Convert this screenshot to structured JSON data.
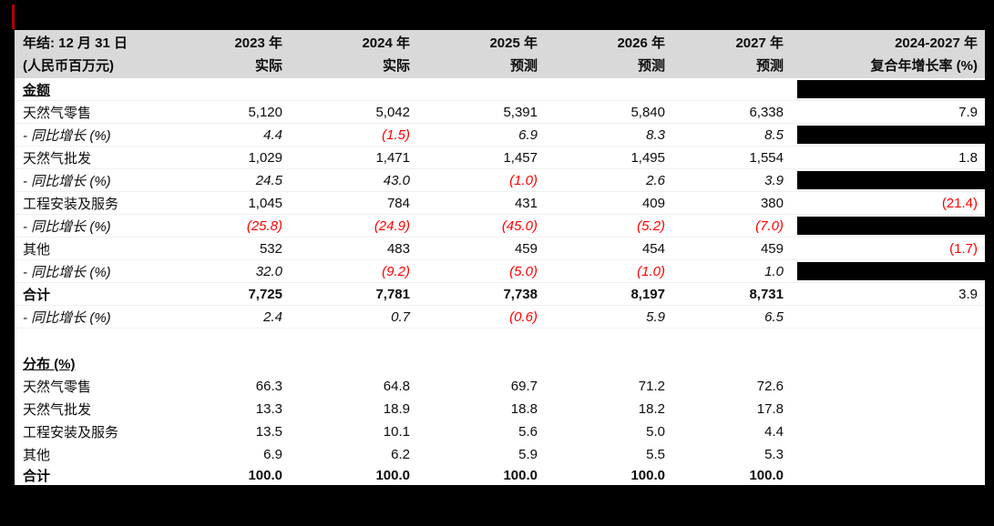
{
  "page": {
    "background_color": "#000000",
    "accent_red": "#b00000",
    "negative_color": "#ff0000",
    "header_bg": "#d9d9d9"
  },
  "header": {
    "label_line1": "年结: 12 月 31 日",
    "label_line2": "(人民币百万元)",
    "cols": [
      {
        "year": "2023 年",
        "type": "实际"
      },
      {
        "year": "2024 年",
        "type": "实际"
      },
      {
        "year": "2025 年",
        "type": "预测"
      },
      {
        "year": "2026 年",
        "type": "预测"
      },
      {
        "year": "2027 年",
        "type": "预测"
      },
      {
        "year": "2024-2027 年",
        "type": "复合年增长率 (%)"
      }
    ]
  },
  "rows": [
    {
      "label": "金额",
      "kind": "section",
      "redacted": true,
      "v": [
        "",
        "",
        "",
        "",
        "",
        ""
      ]
    },
    {
      "label": "天然气零售",
      "kind": "item",
      "redacted": false,
      "v": [
        "5,120",
        "5,042",
        "5,391",
        "5,840",
        "6,338",
        "7.9"
      ]
    },
    {
      "label": "- 同比增长 (%)",
      "kind": "growth",
      "redacted": true,
      "v": [
        "4.4",
        "(1.5)",
        "6.9",
        "8.3",
        "8.5",
        ""
      ]
    },
    {
      "label": "天然气批发",
      "kind": "item",
      "redacted": false,
      "v": [
        "1,029",
        "1,471",
        "1,457",
        "1,495",
        "1,554",
        "1.8"
      ]
    },
    {
      "label": "- 同比增长 (%)",
      "kind": "growth",
      "redacted": true,
      "v": [
        "24.5",
        "43.0",
        "(1.0)",
        "2.6",
        "3.9",
        ""
      ]
    },
    {
      "label": "工程安装及服务",
      "kind": "item",
      "redacted": false,
      "v": [
        "1,045",
        "784",
        "431",
        "409",
        "380",
        "(21.4)"
      ]
    },
    {
      "label": "- 同比增长 (%)",
      "kind": "growth",
      "redacted": true,
      "v": [
        "(25.8)",
        "(24.9)",
        "(45.0)",
        "(5.2)",
        "(7.0)",
        ""
      ]
    },
    {
      "label": "其他",
      "kind": "item",
      "redacted": false,
      "v": [
        "532",
        "483",
        "459",
        "454",
        "459",
        "(1.7)"
      ]
    },
    {
      "label": "- 同比增长 (%)",
      "kind": "growth",
      "redacted": true,
      "v": [
        "32.0",
        "(9.2)",
        "(5.0)",
        "(1.0)",
        "1.0",
        ""
      ]
    },
    {
      "label": "合计",
      "kind": "total",
      "redacted": false,
      "v": [
        "7,725",
        "7,781",
        "7,738",
        "8,197",
        "8,731",
        "3.9"
      ]
    },
    {
      "label": "- 同比增长 (%)",
      "kind": "growth",
      "redacted": false,
      "v": [
        "2.4",
        "0.7",
        "(0.6)",
        "5.9",
        "6.5",
        ""
      ]
    },
    {
      "label": "",
      "kind": "spacer",
      "redacted": false,
      "v": [
        "",
        "",
        "",
        "",
        "",
        ""
      ]
    },
    {
      "label": "分布 (%)",
      "kind": "section",
      "redacted": false,
      "v": [
        "",
        "",
        "",
        "",
        "",
        ""
      ]
    },
    {
      "label": "天然气零售",
      "kind": "item",
      "redacted": false,
      "v": [
        "66.3",
        "64.8",
        "69.7",
        "71.2",
        "72.6",
        ""
      ]
    },
    {
      "label": "天然气批发",
      "kind": "item",
      "redacted": false,
      "v": [
        "13.3",
        "18.9",
        "18.8",
        "18.2",
        "17.8",
        ""
      ]
    },
    {
      "label": "工程安装及服务",
      "kind": "item",
      "redacted": false,
      "v": [
        "13.5",
        "10.1",
        "5.6",
        "5.0",
        "4.4",
        ""
      ]
    },
    {
      "label": "其他",
      "kind": "item",
      "redacted": false,
      "v": [
        "6.9",
        "6.2",
        "5.9",
        "5.5",
        "5.3",
        ""
      ]
    },
    {
      "label": "合计",
      "kind": "total",
      "redacted": false,
      "v": [
        "100.0",
        "100.0",
        "100.0",
        "100.0",
        "100.0",
        ""
      ]
    }
  ],
  "chart_data": {
    "type": "table",
    "title": "年结: 12 月 31 日 (人民币百万元)",
    "columns": [
      "2023 实际",
      "2024 实际",
      "2025 预测",
      "2026 预测",
      "2027 预测",
      "2024-2027 复合年增长率 (%)"
    ],
    "sections": [
      {
        "name": "金额",
        "rows": [
          {
            "label": "天然气零售",
            "values": [
              5120,
              5042,
              5391,
              5840,
              6338
            ],
            "yoy_growth_pct": [
              4.4,
              -1.5,
              6.9,
              8.3,
              8.5
            ],
            "cagr_2024_2027": 7.9
          },
          {
            "label": "天然气批发",
            "values": [
              1029,
              1471,
              1457,
              1495,
              1554
            ],
            "yoy_growth_pct": [
              24.5,
              43.0,
              -1.0,
              2.6,
              3.9
            ],
            "cagr_2024_2027": 1.8
          },
          {
            "label": "工程安装及服务",
            "values": [
              1045,
              784,
              431,
              409,
              380
            ],
            "yoy_growth_pct": [
              -25.8,
              -24.9,
              -45.0,
              -5.2,
              -7.0
            ],
            "cagr_2024_2027": -21.4
          },
          {
            "label": "其他",
            "values": [
              532,
              483,
              459,
              454,
              459
            ],
            "yoy_growth_pct": [
              32.0,
              -9.2,
              -5.0,
              -1.0,
              1.0
            ],
            "cagr_2024_2027": -1.7
          },
          {
            "label": "合计",
            "values": [
              7725,
              7781,
              7738,
              8197,
              8731
            ],
            "yoy_growth_pct": [
              2.4,
              0.7,
              -0.6,
              5.9,
              6.5
            ],
            "cagr_2024_2027": 3.9
          }
        ]
      },
      {
        "name": "分布 (%)",
        "rows": [
          {
            "label": "天然气零售",
            "values": [
              66.3,
              64.8,
              69.7,
              71.2,
              72.6
            ]
          },
          {
            "label": "天然气批发",
            "values": [
              13.3,
              18.9,
              18.8,
              18.2,
              17.8
            ]
          },
          {
            "label": "工程安装及服务",
            "values": [
              13.5,
              10.1,
              5.6,
              5.0,
              4.4
            ]
          },
          {
            "label": "其他",
            "values": [
              6.9,
              6.2,
              5.9,
              5.5,
              5.3
            ]
          },
          {
            "label": "合计",
            "values": [
              100.0,
              100.0,
              100.0,
              100.0,
              100.0
            ]
          }
        ]
      }
    ]
  }
}
